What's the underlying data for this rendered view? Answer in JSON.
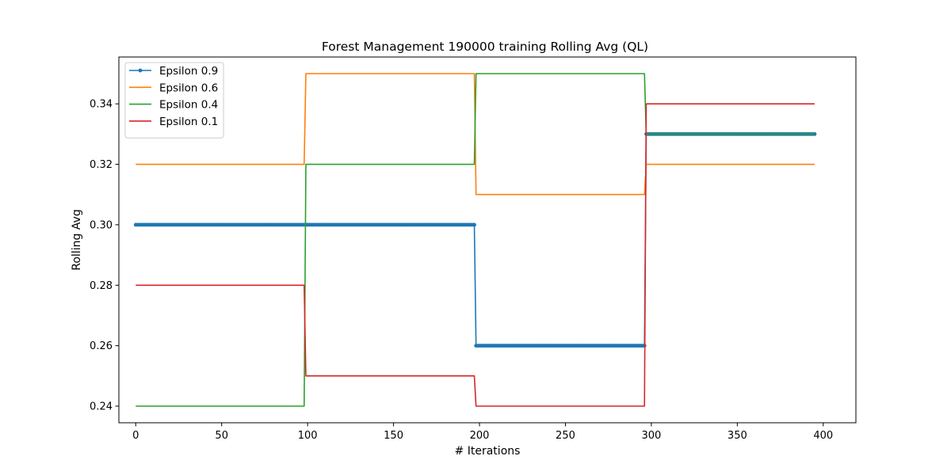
{
  "chart_data": {
    "type": "line",
    "title": "Forest Management 190000 training Rolling Avg (QL)",
    "xlabel": "# Iterations",
    "ylabel": "Rolling Avg",
    "xlim": [
      -9.8,
      419.0
    ],
    "ylim": [
      0.2345,
      0.3555
    ],
    "x_ticks": [
      0,
      50,
      100,
      150,
      200,
      250,
      300,
      350,
      400
    ],
    "y_ticks": [
      0.24,
      0.26,
      0.28,
      0.3,
      0.32,
      0.34
    ],
    "y_tick_labels": [
      "0.24",
      "0.26",
      "0.28",
      "0.30",
      "0.32",
      "0.34"
    ],
    "legend_position": "top-left",
    "grid": false,
    "segment_bounds": [
      0,
      98,
      99,
      197,
      198,
      296,
      297,
      395
    ],
    "series": [
      {
        "name": "Epsilon 0.9",
        "color": "#1f77b4",
        "markers": true,
        "levels": [
          0.3,
          0.3,
          0.26,
          0.33
        ]
      },
      {
        "name": "Epsilon 0.6",
        "color": "#ff7f0e",
        "markers": false,
        "levels": [
          0.32,
          0.35,
          0.31,
          0.32
        ]
      },
      {
        "name": "Epsilon 0.4",
        "color": "#2ca02c",
        "markers": false,
        "levels": [
          0.24,
          0.32,
          0.35,
          0.33
        ]
      },
      {
        "name": "Epsilon 0.1",
        "color": "#d62728",
        "markers": false,
        "levels": [
          0.28,
          0.25,
          0.24,
          0.34
        ]
      }
    ]
  }
}
